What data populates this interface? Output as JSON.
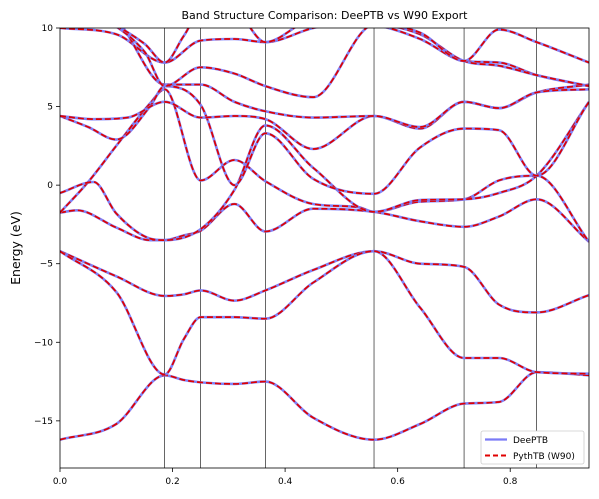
{
  "chart_data": {
    "type": "line",
    "title": "Band Structure Comparison: DeePTB vs W90 Export",
    "xlabel": "",
    "ylabel": "Energy (eV)",
    "xlim": [
      0,
      0.94
    ],
    "ylim": [
      -18,
      10
    ],
    "xticks": [
      0.0,
      0.2,
      0.4,
      0.6,
      0.8
    ],
    "xtick_labels": [
      "0.0",
      "0.2",
      "0.4",
      "0.6",
      "0.8"
    ],
    "yticks": [
      -15,
      -10,
      -5,
      0,
      5,
      10
    ],
    "ytick_labels": [
      "−15",
      "−10",
      "−5",
      "0",
      "5",
      "10"
    ],
    "high_symmetry_lines": [
      0.186,
      0.25,
      0.365,
      0.558,
      0.718,
      0.847
    ],
    "grid": false,
    "legend_position": "lower-right",
    "series_style": [
      {
        "name": "DeePTB",
        "color": "#7b7bf6",
        "dash": "solid"
      },
      {
        "name": "PythTB (W90)",
        "color": "#e00000",
        "dash": "dashed"
      }
    ],
    "bands": [
      {
        "x": [
          0,
          0.1,
          0.186,
          0.22,
          0.25,
          0.31,
          0.365,
          0.45,
          0.558,
          0.64,
          0.718,
          0.78,
          0.847,
          0.94
        ],
        "y": [
          -16.2,
          -15.2,
          -12.1,
          -12.4,
          -12.55,
          -12.65,
          -12.5,
          -14.8,
          -16.2,
          -15.2,
          -13.9,
          -13.8,
          -11.9,
          -12.1
        ]
      },
      {
        "x": [
          0,
          0.1,
          0.186,
          0.22,
          0.25,
          0.31,
          0.365,
          0.45,
          0.558,
          0.64,
          0.718,
          0.78,
          0.847,
          0.94
        ],
        "y": [
          -4.2,
          -5.8,
          -7.05,
          -6.95,
          -6.7,
          -7.35,
          -6.7,
          -5.4,
          -4.2,
          -5.0,
          -5.2,
          -7.6,
          -8.1,
          -7.0
        ]
      },
      {
        "x": [
          0,
          0.1,
          0.186,
          0.22,
          0.25,
          0.31,
          0.365,
          0.45,
          0.558,
          0.64,
          0.718,
          0.78,
          0.847,
          0.94
        ],
        "y": [
          -4.2,
          -6.8,
          -12.05,
          -9.8,
          -8.4,
          -8.4,
          -8.5,
          -6.2,
          -4.2,
          -7.8,
          -11.0,
          -11.0,
          -11.9,
          -12.0
        ]
      },
      {
        "x": [
          0,
          0.03,
          0.1,
          0.16,
          0.186,
          0.22,
          0.25,
          0.31,
          0.365,
          0.45,
          0.558,
          0.64,
          0.718,
          0.78,
          0.847,
          0.94
        ],
        "y": [
          -1.75,
          -1.6,
          -2.7,
          -3.5,
          -3.5,
          -3.2,
          -2.9,
          -1.2,
          -2.95,
          -1.5,
          -1.7,
          -2.3,
          -2.65,
          -2.0,
          -0.9,
          -3.6
        ]
      },
      {
        "x": [
          0,
          0.05,
          0.1,
          0.16,
          0.186,
          0.25,
          0.31,
          0.365,
          0.45,
          0.53,
          0.558,
          0.64,
          0.718,
          0.78,
          0.847,
          0.94
        ],
        "y": [
          -1.75,
          0.2,
          2.5,
          5.2,
          6.1,
          0.3,
          1.6,
          0.25,
          -1.2,
          -1.4,
          -1.7,
          -1.05,
          -0.9,
          0.3,
          0.6,
          -3.6
        ]
      },
      {
        "x": [
          0,
          0.06,
          0.1,
          0.16,
          0.186,
          0.25,
          0.31,
          0.365,
          0.45,
          0.558,
          0.64,
          0.718,
          0.78,
          0.847,
          0.94
        ],
        "y": [
          -0.5,
          0.2,
          -1.8,
          -3.4,
          -3.5,
          -2.8,
          -0.3,
          3.8,
          1.1,
          -1.7,
          -0.95,
          -0.9,
          -0.5,
          0.6,
          5.3
        ]
      },
      {
        "x": [
          0,
          0.05,
          0.1,
          0.16,
          0.186,
          0.25,
          0.31,
          0.365,
          0.45,
          0.558,
          0.64,
          0.718,
          0.78,
          0.847,
          0.94
        ],
        "y": [
          4.4,
          3.7,
          2.9,
          5.0,
          6.3,
          5.1,
          0.0,
          3.3,
          0.4,
          -0.55,
          2.4,
          3.6,
          3.5,
          0.6,
          5.3
        ]
      },
      {
        "x": [
          0,
          0.06,
          0.12,
          0.186,
          0.25,
          0.31,
          0.365,
          0.45,
          0.558,
          0.64,
          0.718,
          0.78,
          0.847,
          0.94
        ],
        "y": [
          4.4,
          4.2,
          4.3,
          5.3,
          4.3,
          4.4,
          4.2,
          2.3,
          4.4,
          3.6,
          5.3,
          4.9,
          5.9,
          6.4
        ]
      },
      {
        "x": [
          0,
          0.1,
          0.186,
          0.25,
          0.31,
          0.365,
          0.45,
          0.5,
          0.558,
          0.64,
          0.718,
          0.78,
          0.847,
          0.94
        ],
        "y": [
          10.0,
          9.6,
          7.8,
          9.2,
          9.3,
          9.1,
          10.0,
          10.3,
          10.2,
          9.3,
          7.9,
          7.8,
          7.0,
          6.3
        ]
      },
      {
        "x": [
          0,
          0.1,
          0.186,
          0.25,
          0.31,
          0.365,
          0.45,
          0.558,
          0.64,
          0.718,
          0.78,
          0.847,
          0.94
        ],
        "y": [
          11.5,
          10.5,
          6.4,
          6.4,
          5.3,
          4.7,
          4.3,
          4.4,
          3.7,
          5.3,
          4.9,
          5.9,
          6.1
        ]
      },
      {
        "x": [
          0,
          0.15,
          0.186,
          0.25,
          0.31,
          0.365,
          0.45,
          0.558,
          0.64,
          0.718,
          0.78,
          0.847,
          0.94
        ],
        "y": [
          12.0,
          8.5,
          6.3,
          7.5,
          7.1,
          6.3,
          5.6,
          10.2,
          9.6,
          7.9,
          7.6,
          7.0,
          6.3
        ]
      },
      {
        "x": [
          0,
          0.15,
          0.186,
          0.22,
          0.25,
          0.31,
          0.365,
          0.45,
          0.558,
          0.64,
          0.718,
          0.78,
          0.847,
          0.94
        ],
        "y": [
          12.0,
          9.0,
          7.8,
          9.5,
          11.0,
          11.0,
          9.1,
          10.5,
          10.3,
          9.7,
          7.9,
          9.9,
          9.1,
          7.8
        ]
      }
    ],
    "series": [
      {
        "name": "DeePTB"
      },
      {
        "name": "PythTB (W90)"
      }
    ]
  }
}
